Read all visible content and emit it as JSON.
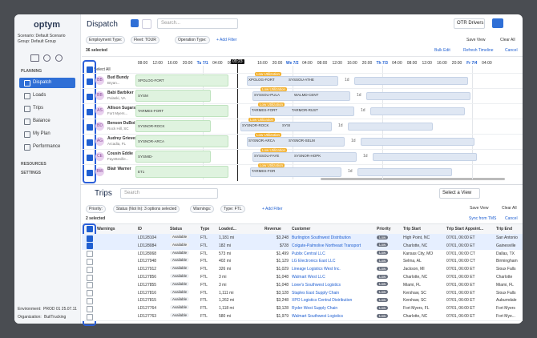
{
  "sidebar": {
    "logo": "optym",
    "scenario": "Scenario: Default Scenario",
    "group": "Group: Default Group",
    "planning": "PLANNING",
    "nav": [
      "Dispatch",
      "Loads",
      "Trips",
      "Balance",
      "My Plan",
      "Performance"
    ],
    "resources": "RESOURCES",
    "settings": "SETTINGS",
    "environment": "Environment:",
    "environment_value": "PROD 01 25.07.11",
    "organization": "Organization:",
    "organization_value": "BuilTrucking"
  },
  "dispatch": {
    "title": "Dispatch",
    "search": "Search...",
    "driver_view": "OTR Drivers",
    "filters": [
      "Employment Type:",
      "Fleet: TOUR",
      "Operation Type:"
    ],
    "add_filter": "+ Add Filter",
    "save_view": "Save View",
    "clear_all": "Clear All",
    "selected": "36 selected",
    "bulk_edit": "Bulk Edit",
    "refresh": "Refresh Timeline",
    "cancel": "Cancel",
    "select_all": "Select All",
    "times": [
      "08:00",
      "12:00",
      "16:00",
      "20:00",
      "Tu 7/1",
      "04:00",
      "08:00",
      null,
      "16:00",
      "20:00",
      "We 7/2",
      "04:00",
      "08:00",
      "12:00",
      "16:00",
      "20:00",
      "Th 7/3",
      "04:00",
      "08:00",
      "12:00",
      "16:00",
      "20:00",
      "Fr 7/4",
      "04:00"
    ],
    "now": "09:23",
    "drivers": [
      {
        "initials": "BB",
        "name": "Bud Bundy",
        "location": "Bryan...",
        "current": "XPOLOG-FORT",
        "tag": "Low Utilization",
        "from": "XPOLOG-FORT",
        "to": "SYSSOU-ATHE",
        "duration": "1d"
      },
      {
        "initials": "BB",
        "name": "Babi Barbiker",
        "location": "Pulaski, VA",
        "current": "SYSM",
        "tag": "Low Utilization",
        "from": "SYSSOU-PULA",
        "to": "WALMD-CENT",
        "duration": "1d"
      },
      {
        "initials": "AS",
        "name": "Allison Sugars",
        "location": "Fort Myers...",
        "current": "TARMES-FORT",
        "tag": "Low Utilization",
        "from": "TARMES-FORT",
        "to": "TARMOR-RUST",
        "duration": "1d"
      },
      {
        "initials": "BD",
        "name": "Benson DuBoi",
        "location": "Rock Hill, SC",
        "current": "SYSNOR-ROCK",
        "tag": "Low Utilization",
        "from": "SYSNOR-ROCK",
        "to": "SYSI",
        "duration": "1d"
      },
      {
        "initials": "AG",
        "name": "Audrey Grieves",
        "location": "Arcadia, FL",
        "current": "SYSNOR-ARCA",
        "tag": "Low Utilization",
        "from": "SYSNOR-ARCA",
        "to": "SYSNOR-SELM",
        "duration": "1d"
      },
      {
        "initials": "CE",
        "name": "Cousin Eddie",
        "location": "Fayetteville...",
        "current": "SYSMID-",
        "tag": "Low Utilization",
        "from": "SYSSOU-FAYE",
        "to": "SYSNOR-HOPK",
        "duration": "1d"
      },
      {
        "initials": "BW",
        "name": "Blair Warner",
        "location": "",
        "current": "ET1",
        "tag": "Low Utilization",
        "from": "TARMES-FOR",
        "to": "",
        "duration": "1d"
      }
    ]
  },
  "trips": {
    "title": "Trips",
    "search": "Search",
    "select_view": "Select a View",
    "filters": [
      "Priority:",
      "Status (Not In): 3 options selected",
      "Warnings:",
      "Type: FTL"
    ],
    "add_filter": "+ Add Filter",
    "save_view": "Save View",
    "clear_all": "Clear All",
    "selected": "2 selected",
    "sync": "Sync from TMS",
    "cancel": "Cancel",
    "columns": [
      "Warnings",
      "ID",
      "Status",
      "Type",
      "Loaded...",
      "Revenue",
      "Customer",
      "Priority",
      "Trip Start",
      "Trip Start Appoint...",
      "Trip End"
    ],
    "rows": [
      [
        "LD128104",
        "Available",
        "FTL",
        "1,181 mi",
        "$3,248",
        "Burlington Southwest Distribution",
        "Low",
        "High Point, NC",
        "07/01, 06:00 ET",
        "San Antonio"
      ],
      [
        "LD128084",
        "Available",
        "FTL",
        "182 mi",
        "$728",
        "Colgate-Palmolive Northeast Transport",
        "Low",
        "Charlotte, NC",
        "07/01, 06:00 ET",
        "Gainesville"
      ],
      [
        "LD128068",
        "Available",
        "FTL",
        "573 mi",
        "$1,499",
        "Publix Central LLC",
        "Low",
        "Kansas City, MO",
        "07/01, 06:00 CT",
        "Dallas, TX"
      ],
      [
        "LD127948",
        "Available",
        "FTL",
        "402 mi",
        "$1,129",
        "LG Electronics East LLC",
        "Low",
        "Selma, AL",
        "07/01, 06:00 CT",
        "Birmingham"
      ],
      [
        "LD127912",
        "Available",
        "FTL",
        "326 mi",
        "$1,029",
        "Lineage Logistics West Inc.",
        "Low",
        "Jackson, MI",
        "07/01, 06:00 ET",
        "Sioux Falls"
      ],
      [
        "LD127856",
        "Available",
        "FTL",
        "3 mi",
        "$1,048",
        "Walmart West LLC",
        "Low",
        "Charlotte, NC",
        "07/01, 06:00 ET",
        "Charlotte"
      ],
      [
        "LD127855",
        "Available",
        "FTL",
        "3 mi",
        "$1,048",
        "Lowe's Southwest Logistics",
        "Low",
        "Miami, FL",
        "07/01, 06:00 ET",
        "Miami, FL"
      ],
      [
        "LD127816",
        "Available",
        "FTL",
        "1,111 mi",
        "$3,128",
        "Staples East Supply Chain",
        "Low",
        "Kershaw, SC",
        "07/01, 06:00 ET",
        "Sioux Falls"
      ],
      [
        "LD127815",
        "Available",
        "FTL",
        "1,262 mi",
        "$3,248",
        "XPO Logistics Central Distribution",
        "Low",
        "Kershaw, SC",
        "07/01, 06:00 ET",
        "Auburndale"
      ],
      [
        "LD127764",
        "Available",
        "FTL",
        "1,118 mi",
        "$3,128",
        "Ryder West Supply Chain",
        "Low",
        "Fort Myers, FL",
        "07/01, 06:00 ET",
        "Fort Myers"
      ],
      [
        "LD127763",
        "Available",
        "FTL",
        "580 mi",
        "$1,979",
        "Walmart Southwest Logistics",
        "Low",
        "Charlotte, NC",
        "07/01, 06:00 ET",
        "Fort Mye..."
      ]
    ],
    "checked": [
      true,
      true,
      false,
      false,
      false,
      false,
      false,
      false,
      false,
      false,
      false
    ]
  }
}
